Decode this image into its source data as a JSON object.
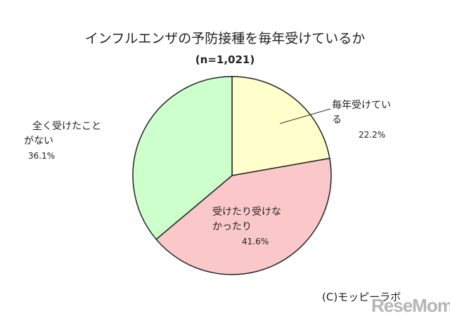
{
  "chart_data": {
    "type": "pie",
    "title": "インフルエンザの予防接種を毎年受けているか",
    "subtitle": "(n=1,021)",
    "start_angle_deg": 0,
    "direction": "clockwise",
    "slices": [
      {
        "name_lines": [
          "毎年受けてい",
          "る"
        ],
        "value": 22.2,
        "label": "22.2%",
        "color": "#FFFFCC"
      },
      {
        "name_lines": [
          "受けたり受けな",
          "かったり"
        ],
        "value": 41.6,
        "label": "41.6%",
        "color": "#FAC8C8"
      },
      {
        "name_lines": [
          "全く受けたこと",
          "がない"
        ],
        "value": 36.1,
        "label": "36.1%",
        "color": "#CCFFCC"
      }
    ],
    "legend": "none",
    "outline_color": "#222222"
  },
  "footer": {
    "copyright": "(C)モッピーラボ",
    "watermark": "ReseMom"
  }
}
